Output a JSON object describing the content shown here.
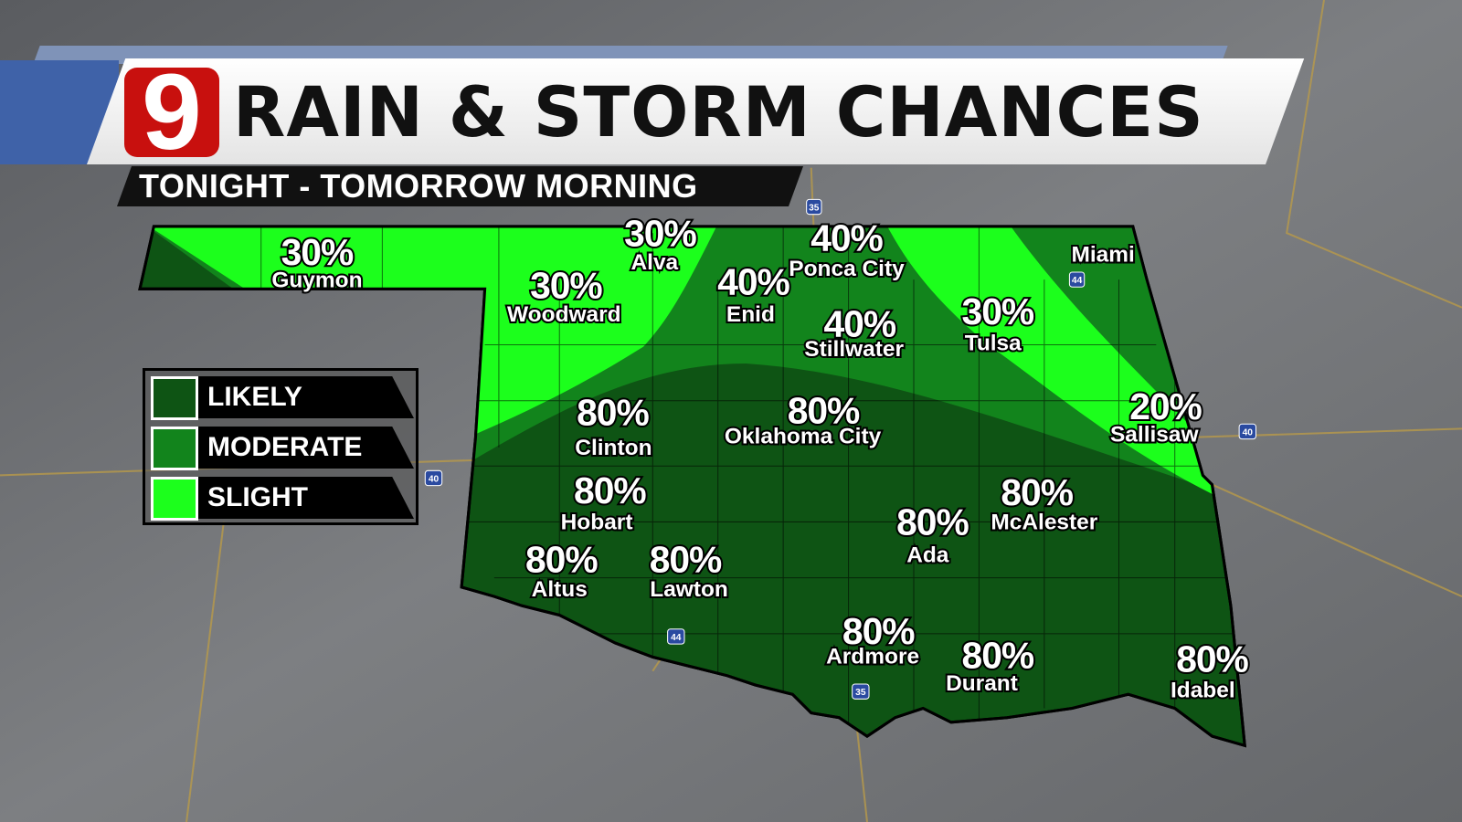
{
  "header": {
    "logo": "9",
    "title": "RAIN & STORM CHANCES",
    "subtitle": "TONIGHT - TOMORROW MORNING"
  },
  "legend": [
    {
      "label": "LIKELY",
      "color": "#0e5414"
    },
    {
      "label": "MODERATE",
      "color": "#12841c"
    },
    {
      "label": "SLIGHT",
      "color": "#1cff1c"
    }
  ],
  "cities": [
    {
      "name": "Guymon",
      "chance": "30%"
    },
    {
      "name": "Alva",
      "chance": "30%"
    },
    {
      "name": "Woodward",
      "chance": "30%"
    },
    {
      "name": "Enid",
      "chance": "40%"
    },
    {
      "name": "Ponca City",
      "chance": "40%"
    },
    {
      "name": "Stillwater",
      "chance": "40%"
    },
    {
      "name": "Tulsa",
      "chance": "30%"
    },
    {
      "name": "Miami",
      "chance": ""
    },
    {
      "name": "Sallisaw",
      "chance": "20%"
    },
    {
      "name": "Clinton",
      "chance": "80%"
    },
    {
      "name": "Oklahoma City",
      "chance": "80%"
    },
    {
      "name": "Hobart",
      "chance": "80%"
    },
    {
      "name": "McAlester",
      "chance": "80%"
    },
    {
      "name": "Ada",
      "chance": "80%"
    },
    {
      "name": "Altus",
      "chance": "80%"
    },
    {
      "name": "Lawton",
      "chance": "80%"
    },
    {
      "name": "Ardmore",
      "chance": "80%"
    },
    {
      "name": "Durant",
      "chance": "80%"
    },
    {
      "name": "Idabel",
      "chance": "80%"
    }
  ],
  "interstates": [
    "35",
    "44",
    "40",
    "40",
    "44",
    "35"
  ],
  "colors": {
    "background": "#6e7073",
    "logo_red": "#c8100e",
    "banner_blue": "#3f62a8"
  }
}
